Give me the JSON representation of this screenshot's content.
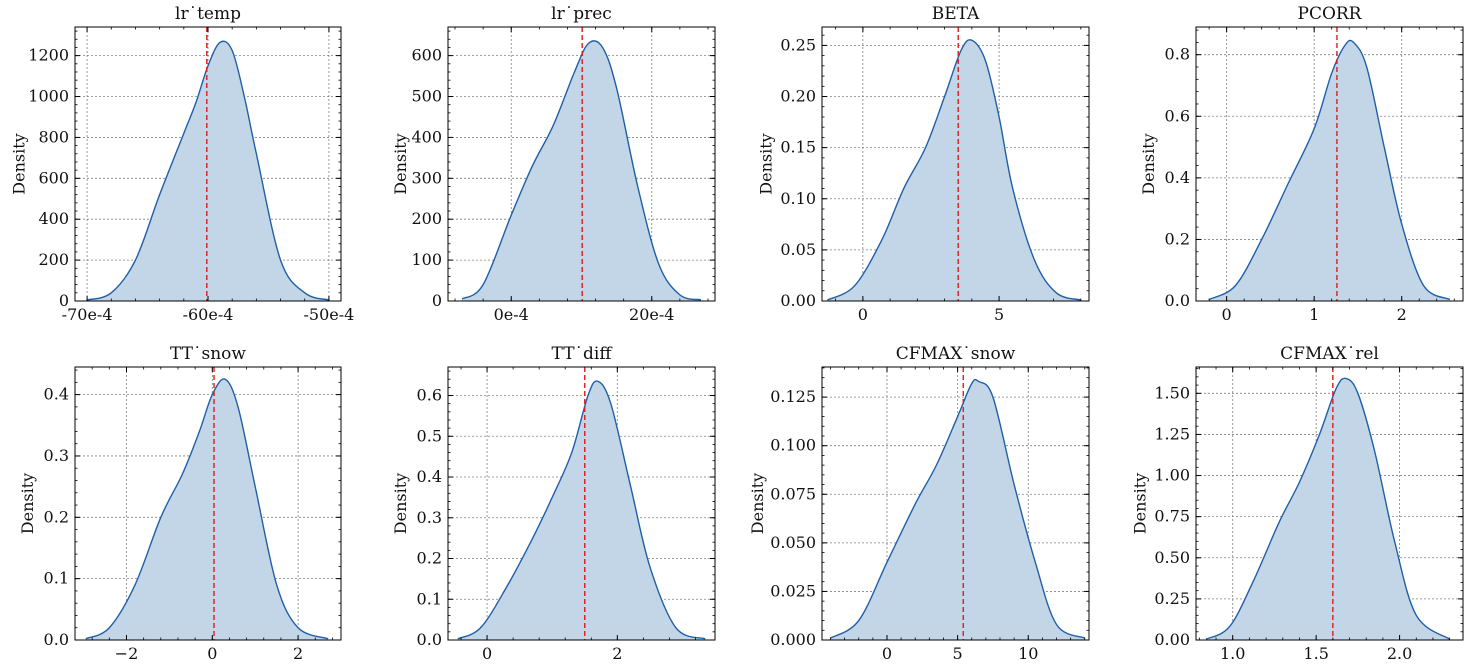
{
  "figure": {
    "ylabel": "Density",
    "fill_color": "#c3d6e8",
    "line_color": "#1f5fa6",
    "ref_line_color": "#e31a1c",
    "grid_color": "#808080"
  },
  "chart_data": [
    {
      "type": "area",
      "title": "lr˙temp",
      "ylabel": "Density",
      "xlim": [
        -0.0071,
        -0.0049
      ],
      "ylim": [
        0,
        1340
      ],
      "xticks": [
        -0.007,
        -0.006,
        -0.005
      ],
      "xtick_labels": [
        "-70e-4",
        "-60e-4",
        "-50e-4"
      ],
      "yticks": [
        0,
        200,
        400,
        600,
        800,
        1000,
        1200
      ],
      "ytick_labels": [
        "0",
        "200",
        "400",
        "600",
        "800",
        "1000",
        "1200"
      ],
      "ref_line": -0.00601,
      "grid": true,
      "x": [
        -0.007,
        -0.0068,
        -0.0066,
        -0.0064,
        -0.0062,
        -0.0061,
        -0.006,
        -0.0059,
        -0.0058,
        -0.0057,
        -0.0056,
        -0.0054,
        -0.0052,
        -0.005
      ],
      "y": [
        5,
        40,
        200,
        520,
        820,
        970,
        1150,
        1265,
        1225,
        1000,
        720,
        200,
        40,
        5
      ]
    },
    {
      "type": "area",
      "title": "lr˙prec",
      "ylabel": "Density",
      "xlim": [
        -0.0009,
        0.0029
      ],
      "ylim": [
        0,
        670
      ],
      "xticks": [
        0,
        0.002
      ],
      "xtick_labels": [
        "0e-4",
        "20e-4"
      ],
      "yticks": [
        0,
        100,
        200,
        300,
        400,
        500,
        600
      ],
      "ytick_labels": [
        "0",
        "100",
        "200",
        "300",
        "400",
        "500",
        "600"
      ],
      "ref_line": 0.00101,
      "grid": true,
      "x": [
        -0.0007,
        -0.0004,
        0.0,
        0.0003,
        0.0006,
        0.0009,
        0.0011,
        0.0013,
        0.0015,
        0.0018,
        0.0021,
        0.0024,
        0.0027
      ],
      "y": [
        5,
        40,
        210,
        330,
        430,
        560,
        630,
        620,
        520,
        280,
        90,
        15,
        3
      ]
    },
    {
      "type": "area",
      "title": "BETA",
      "ylabel": "Density",
      "xlim": [
        -1.5,
        8.3
      ],
      "ylim": [
        0,
        0.268
      ],
      "xticks": [
        0,
        5
      ],
      "xtick_labels": [
        "0",
        "5"
      ],
      "yticks": [
        0,
        0.05,
        0.1,
        0.15,
        0.2,
        0.25
      ],
      "ytick_labels": [
        "0.00",
        "0.05",
        "0.10",
        "0.15",
        "0.20",
        "0.25"
      ],
      "ref_line": 3.5,
      "grid": true,
      "x": [
        -1.3,
        -0.3,
        0.7,
        1.5,
        2.3,
        3.0,
        3.6,
        4.0,
        4.5,
        5.0,
        5.5,
        6.3,
        7.1,
        8.0
      ],
      "y": [
        0.001,
        0.015,
        0.06,
        0.11,
        0.15,
        0.2,
        0.245,
        0.255,
        0.235,
        0.18,
        0.11,
        0.04,
        0.008,
        0.001
      ]
    },
    {
      "type": "area",
      "title": "PCORR",
      "ylabel": "Density",
      "xlim": [
        -0.35,
        2.7
      ],
      "ylim": [
        0,
        0.89
      ],
      "xticks": [
        0,
        1,
        2
      ],
      "xtick_labels": [
        "0",
        "1",
        "2"
      ],
      "yticks": [
        0,
        0.2,
        0.4,
        0.6,
        0.8
      ],
      "ytick_labels": [
        "0.0",
        "0.2",
        "0.4",
        "0.6",
        "0.8"
      ],
      "ref_line": 1.26,
      "grid": true,
      "x": [
        -0.2,
        0.1,
        0.4,
        0.7,
        1.0,
        1.2,
        1.35,
        1.45,
        1.6,
        1.8,
        2.0,
        2.25,
        2.55
      ],
      "y": [
        0.005,
        0.05,
        0.2,
        0.38,
        0.56,
        0.74,
        0.83,
        0.84,
        0.76,
        0.5,
        0.25,
        0.05,
        0.005
      ]
    },
    {
      "type": "area",
      "title": "TT˙snow",
      "ylabel": "Density",
      "xlim": [
        -3.2,
        3.0
      ],
      "ylim": [
        0,
        0.445
      ],
      "xticks": [
        -2,
        0,
        2
      ],
      "xtick_labels": [
        "−2",
        "0",
        "2"
      ],
      "yticks": [
        0,
        0.1,
        0.2,
        0.3,
        0.4
      ],
      "ytick_labels": [
        "0.0",
        "0.1",
        "0.2",
        "0.3",
        "0.4"
      ],
      "ref_line": 0.04,
      "grid": true,
      "x": [
        -2.95,
        -2.4,
        -1.8,
        -1.2,
        -0.7,
        -0.3,
        0.0,
        0.3,
        0.6,
        1.0,
        1.5,
        2.0,
        2.7
      ],
      "y": [
        0.002,
        0.02,
        0.09,
        0.2,
        0.27,
        0.34,
        0.4,
        0.425,
        0.38,
        0.25,
        0.09,
        0.02,
        0.002
      ]
    },
    {
      "type": "area",
      "title": "TT˙diff",
      "ylabel": "Density",
      "xlim": [
        -0.6,
        3.5
      ],
      "ylim": [
        0,
        0.67
      ],
      "xticks": [
        0,
        2
      ],
      "xtick_labels": [
        "0",
        "2"
      ],
      "yticks": [
        0,
        0.1,
        0.2,
        0.3,
        0.4,
        0.5,
        0.6
      ],
      "ytick_labels": [
        "0.0",
        "0.1",
        "0.2",
        "0.3",
        "0.4",
        "0.5",
        "0.6"
      ],
      "ref_line": 1.5,
      "grid": true,
      "x": [
        -0.45,
        -0.1,
        0.3,
        0.7,
        1.0,
        1.3,
        1.55,
        1.7,
        1.9,
        2.2,
        2.5,
        2.9,
        3.35
      ],
      "y": [
        0.003,
        0.03,
        0.13,
        0.25,
        0.35,
        0.46,
        0.6,
        0.635,
        0.58,
        0.38,
        0.18,
        0.03,
        0.003
      ]
    },
    {
      "type": "area",
      "title": "CFMAX˙snow",
      "ylabel": "Density",
      "xlim": [
        -4.6,
        14.3
      ],
      "ylim": [
        0,
        0.1405
      ],
      "xticks": [
        0,
        5,
        10
      ],
      "xtick_labels": [
        "0",
        "5",
        "10"
      ],
      "yticks": [
        0,
        0.025,
        0.05,
        0.075,
        0.1,
        0.125
      ],
      "ytick_labels": [
        "0.000",
        "0.025",
        "0.050",
        "0.075",
        "0.100",
        "0.125"
      ],
      "ref_line": 5.4,
      "grid": true,
      "x": [
        -4.0,
        -2.0,
        0.0,
        2.0,
        3.5,
        5.0,
        6.0,
        6.5,
        7.5,
        9.0,
        10.5,
        12.0,
        14.0
      ],
      "y": [
        0.001,
        0.01,
        0.04,
        0.07,
        0.09,
        0.115,
        0.132,
        0.133,
        0.125,
        0.08,
        0.04,
        0.008,
        0.001
      ]
    },
    {
      "type": "area",
      "title": "CFMAX˙rel",
      "ylabel": "Density",
      "xlim": [
        0.78,
        2.38
      ],
      "ylim": [
        0,
        1.66
      ],
      "xticks": [
        1.0,
        1.5,
        2.0
      ],
      "xtick_labels": [
        "1.0",
        "1.5",
        "2.0"
      ],
      "yticks": [
        0,
        0.25,
        0.5,
        0.75,
        1.0,
        1.25,
        1.5
      ],
      "ytick_labels": [
        "0.00",
        "0.25",
        "0.50",
        "0.75",
        "1.00",
        "1.25",
        "1.50"
      ],
      "ref_line": 1.6,
      "grid": true,
      "x": [
        0.84,
        0.98,
        1.12,
        1.28,
        1.4,
        1.52,
        1.62,
        1.68,
        1.75,
        1.85,
        1.97,
        2.1,
        2.3
      ],
      "y": [
        0.005,
        0.08,
        0.35,
        0.72,
        0.96,
        1.25,
        1.53,
        1.59,
        1.5,
        1.15,
        0.6,
        0.15,
        0.005
      ]
    }
  ]
}
